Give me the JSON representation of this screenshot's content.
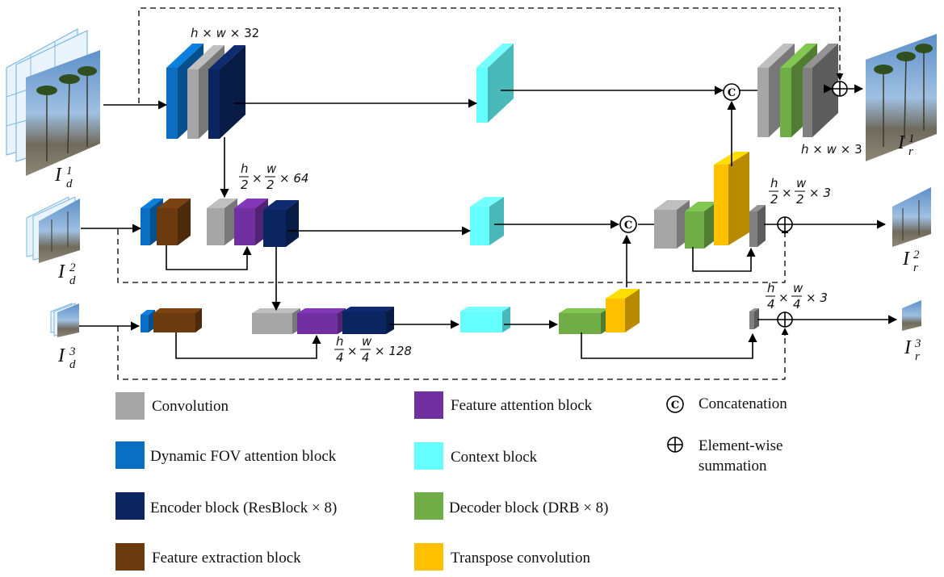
{
  "colors": {
    "convolution": "#a6a6a6",
    "dynamic_fov": "#0a6fc2",
    "encoder": "#0b2560",
    "feature_extraction": "#6b3a0f",
    "feature_attention": "#7030a0",
    "context": "#66ffff",
    "decoder": "#70ad47",
    "transpose": "#ffc000",
    "output_conv": "#808080"
  },
  "icons": [
    "concatenation-icon",
    "element-wise-summation-icon",
    "image-patch-grid-icon"
  ],
  "dims": {
    "level1_in": [
      "h",
      "×",
      "w",
      "×",
      "32"
    ],
    "level1_out": [
      "h",
      "×",
      "w",
      "×",
      "3"
    ],
    "level2_in": {
      "h": "h",
      "w": "w",
      "den": "2",
      "ch": "× 64"
    },
    "level2_out": {
      "h": "h",
      "w": "w",
      "den": "2",
      "ch": "× 3"
    },
    "level3_in": {
      "h": "h",
      "w": "w",
      "den": "4",
      "ch": "× 128"
    },
    "level3_out": {
      "h": "h",
      "w": "w",
      "den": "4",
      "ch": "× 3"
    }
  },
  "inputs": [
    {
      "base": "I",
      "sub": "d",
      "sup": "1"
    },
    {
      "base": "I",
      "sub": "d",
      "sup": "2"
    },
    {
      "base": "I",
      "sub": "d",
      "sup": "3"
    }
  ],
  "outputs": [
    {
      "base": "I",
      "sub": "r",
      "sup": "1"
    },
    {
      "base": "I",
      "sub": "r",
      "sup": "2"
    },
    {
      "base": "I",
      "sub": "r",
      "sup": "3"
    }
  ],
  "concat_symbol": "C",
  "legend": {
    "convolution": "Convolution",
    "dynamic_fov": "Dynamic FOV attention block",
    "encoder": "Encoder block (ResBlock × 8)",
    "feature_extraction": "Feature extraction block",
    "feature_attention": "Feature attention block",
    "context": "Context block",
    "decoder": "Decoder block (DRB × 8)",
    "transpose": "Transpose convolution",
    "concatenation": "Concatenation",
    "summation_line1": "Element-wise",
    "summation_line2": "summation"
  }
}
